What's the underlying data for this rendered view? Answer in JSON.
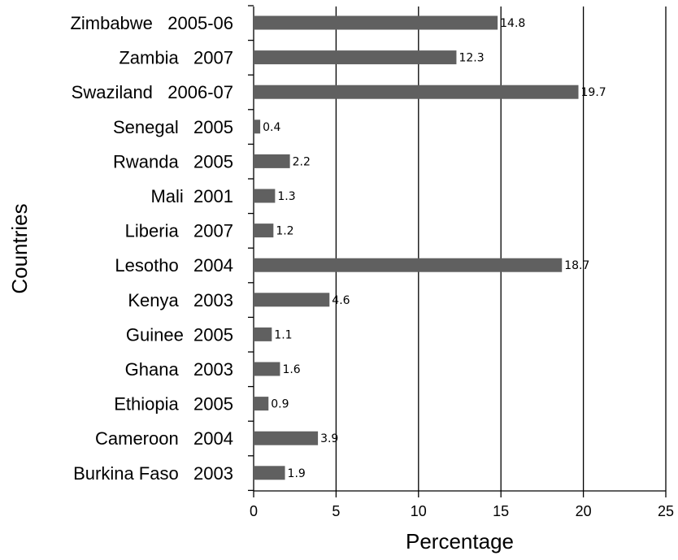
{
  "chart_data": {
    "type": "bar",
    "orientation": "horizontal",
    "title": "",
    "xlabel": "Percentage",
    "ylabel": "Countries",
    "xlim": [
      0,
      25
    ],
    "xticks": [
      "0",
      "5",
      "10",
      "15",
      "20",
      "25"
    ],
    "grid": "vertical",
    "legend": "none",
    "bar_color": "#606060",
    "categories": [
      "Zimbabwe   2005-06",
      "Zambia   2007",
      "Swaziland   2006-07",
      "Senegal   2005",
      "Rwanda   2005",
      "Mali  2001",
      "Liberia   2007",
      "Lesotho   2004",
      "Kenya   2003",
      "Guinee  2005",
      "Ghana   2003",
      "Ethiopia   2005",
      "Cameroon   2004",
      "Burkina Faso   2003"
    ],
    "values": [
      14.8,
      12.3,
      19.7,
      0.4,
      2.2,
      1.3,
      1.2,
      18.7,
      4.6,
      1.1,
      1.6,
      0.9,
      3.9,
      1.9
    ],
    "data_labels": [
      "14.8",
      "12.3",
      "19.7",
      "0.4",
      "2.2",
      "1.3",
      "1.2",
      "18.7",
      "4.6",
      "1.1",
      "1.6",
      "0.9",
      "3.9",
      "1.9"
    ]
  }
}
